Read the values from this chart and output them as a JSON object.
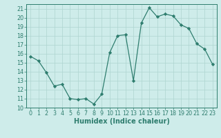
{
  "x": [
    0,
    1,
    2,
    3,
    4,
    5,
    6,
    7,
    8,
    9,
    10,
    11,
    12,
    13,
    14,
    15,
    16,
    17,
    18,
    19,
    20,
    21,
    22,
    23
  ],
  "y": [
    15.7,
    15.2,
    13.9,
    12.4,
    12.6,
    11.0,
    10.9,
    11.0,
    10.4,
    11.5,
    16.1,
    18.0,
    18.1,
    13.0,
    19.4,
    21.1,
    20.1,
    20.4,
    20.2,
    19.2,
    18.8,
    17.1,
    16.5,
    14.8
  ],
  "line_color": "#2e7d6e",
  "marker": "D",
  "marker_size": 2.2,
  "bg_color": "#ceecea",
  "grid_color": "#aed4d0",
  "xlabel": "Humidex (Indice chaleur)",
  "xlim": [
    -0.5,
    23.5
  ],
  "ylim": [
    10,
    21.5
  ],
  "yticks": [
    10,
    11,
    12,
    13,
    14,
    15,
    16,
    17,
    18,
    19,
    20,
    21
  ],
  "xticks": [
    0,
    1,
    2,
    3,
    4,
    5,
    6,
    7,
    8,
    9,
    10,
    11,
    12,
    13,
    14,
    15,
    16,
    17,
    18,
    19,
    20,
    21,
    22,
    23
  ],
  "tick_label_fontsize": 5.8,
  "xlabel_fontsize": 7.0,
  "axis_color": "#2e7d6e",
  "linewidth": 0.9
}
